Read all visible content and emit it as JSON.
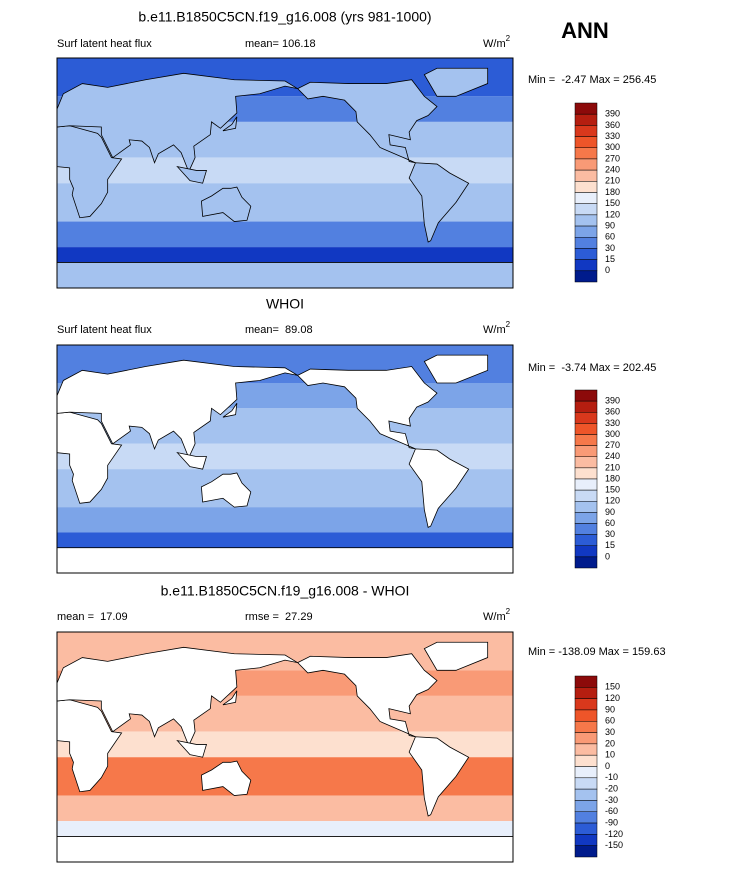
{
  "header": {
    "season": "ANN"
  },
  "panels": [
    {
      "title": "b.e11.B1850C5CN.f19_g16.008 (yrs 981-1000)",
      "left": "Surf latent heat flux",
      "stat1": "mean= 106.18",
      "units": {
        "base": "W/m",
        "sup": "2"
      },
      "range": "Min =  -2.47 Max = 256.45",
      "colorbar": {
        "labels": [
          390,
          360,
          330,
          300,
          270,
          240,
          210,
          180,
          150,
          120,
          90,
          60,
          30,
          15,
          0
        ],
        "colors": [
          "#8c0a0a",
          "#b51e10",
          "#d9381c",
          "#ee5529",
          "#f6784a",
          "#f99a76",
          "#fbbca2",
          "#fde0cf",
          "#e8effb",
          "#c8daf5",
          "#a4c2ef",
          "#7ca4e8",
          "#5280e0",
          "#2c5cd6",
          "#1138c2",
          "#001b8c"
        ]
      }
    },
    {
      "title": "WHOI",
      "left": "Surf latent heat flux",
      "stat1": "mean=  89.08",
      "units": {
        "base": "W/m",
        "sup": "2"
      },
      "range": "Min =  -3.74 Max = 202.45",
      "colorbar": {
        "labels": [
          390,
          360,
          330,
          300,
          270,
          240,
          210,
          180,
          150,
          120,
          90,
          60,
          30,
          15,
          0
        ],
        "colors": [
          "#8c0a0a",
          "#b51e10",
          "#d9381c",
          "#ee5529",
          "#f6784a",
          "#f99a76",
          "#fbbca2",
          "#fde0cf",
          "#e8effb",
          "#c8daf5",
          "#a4c2ef",
          "#7ca4e8",
          "#5280e0",
          "#2c5cd6",
          "#1138c2",
          "#001b8c"
        ]
      }
    },
    {
      "title": "b.e11.B1850C5CN.f19_g16.008 - WHOI",
      "left": "mean =  17.09",
      "stat1": "rmse =  27.29",
      "units": {
        "base": "W/m",
        "sup": "2"
      },
      "range": "Min = -138.09 Max = 159.63",
      "colorbar": {
        "labels": [
          150,
          120,
          90,
          60,
          30,
          20,
          10,
          0,
          -10,
          -20,
          -30,
          -60,
          -90,
          -120,
          -150
        ],
        "colors": [
          "#8c0a0a",
          "#b51e10",
          "#d9381c",
          "#ee5529",
          "#f6784a",
          "#f99a76",
          "#fbbca2",
          "#fde0cf",
          "#e8effb",
          "#c8daf5",
          "#a4c2ef",
          "#7ca4e8",
          "#5280e0",
          "#2c5cd6",
          "#1138c2",
          "#001b8c"
        ]
      }
    }
  ]
}
